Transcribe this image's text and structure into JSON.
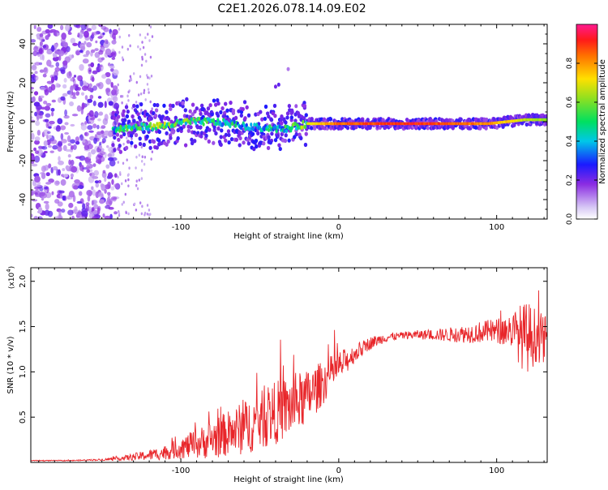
{
  "title": "C2E1.2026.078.14.09.E02",
  "chart_data": [
    {
      "type": "heatmap",
      "xlabel": "Height of straight line (km)",
      "ylabel": "Frequency (Hz)",
      "xlim": [
        -195,
        132
      ],
      "ylim": [
        -50,
        50
      ],
      "xticks": [
        "-100",
        "0",
        "100"
      ],
      "yticks": [
        "-40",
        "-20",
        "0",
        "20",
        "40"
      ],
      "xtick_values": [
        -100,
        0,
        100
      ],
      "ytick_values": [
        -40,
        -20,
        0,
        20,
        40
      ],
      "colorbar": {
        "label": "Normalized spectral amplitude",
        "ticks": [
          "0.0",
          "0.2",
          "0.4",
          "0.6",
          "0.8"
        ],
        "tick_values": [
          0.0,
          0.2,
          0.4,
          0.6,
          0.8
        ],
        "range": [
          0,
          1
        ]
      },
      "ridge": [
        {
          "x": -143,
          "freq": -4,
          "amp": 0.5
        },
        {
          "x": -130,
          "freq": -3,
          "amp": 0.55
        },
        {
          "x": -110,
          "freq": -2,
          "amp": 0.65
        },
        {
          "x": -95,
          "freq": 0,
          "amp": 0.6
        },
        {
          "x": -80,
          "freq": 0,
          "amp": 0.55
        },
        {
          "x": -68,
          "freq": -1,
          "amp": 0.5
        },
        {
          "x": -55,
          "freq": -3,
          "amp": 0.45
        },
        {
          "x": -45,
          "freq": -3,
          "amp": 0.5
        },
        {
          "x": -35,
          "freq": -4,
          "amp": 0.5
        },
        {
          "x": -20,
          "freq": -1,
          "amp": 0.7
        },
        {
          "x": 0,
          "freq": -1,
          "amp": 0.9
        },
        {
          "x": 50,
          "freq": -1,
          "amp": 0.95
        },
        {
          "x": 95,
          "freq": -1,
          "amp": 0.85
        },
        {
          "x": 118,
          "freq": 1,
          "amp": 0.7
        },
        {
          "x": 130,
          "freq": 1,
          "amp": 0.65
        }
      ]
    },
    {
      "type": "line",
      "xlabel": "Height of straight line (km)",
      "ylabel": "SNR (10 * v/v)",
      "y_exponent_label": "(x10",
      "y_exponent_power": "4",
      "y_exponent_close": ")",
      "xlim": [
        -195,
        132
      ],
      "ylim": [
        0,
        2.15
      ],
      "xticks": [
        "-100",
        "0",
        "100"
      ],
      "yticks": [
        "0.5",
        "1.0",
        "1.5",
        "2.0"
      ],
      "xtick_values": [
        -100,
        0,
        100
      ],
      "ytick_values": [
        0.5,
        1.0,
        1.5,
        2.0
      ],
      "series": [
        {
          "name": "SNR",
          "color": "#e8262a",
          "x": [
            -195,
            -170,
            -150,
            -140,
            -130,
            -120,
            -110,
            -100,
            -90,
            -80,
            -70,
            -60,
            -50,
            -40,
            -30,
            -20,
            -15,
            -10,
            -5,
            0,
            10,
            20,
            30,
            40,
            50,
            60,
            70,
            80,
            90,
            100,
            110,
            115,
            120,
            125,
            132
          ],
          "y": [
            0.02,
            0.02,
            0.03,
            0.04,
            0.06,
            0.08,
            0.11,
            0.16,
            0.2,
            0.26,
            0.32,
            0.38,
            0.46,
            0.55,
            0.62,
            0.72,
            0.8,
            0.88,
            0.98,
            1.05,
            1.2,
            1.32,
            1.38,
            1.4,
            1.41,
            1.41,
            1.41,
            1.42,
            1.44,
            1.45,
            1.46,
            1.4,
            1.38,
            1.4,
            1.35
          ],
          "noise": [
            0.005,
            0.005,
            0.01,
            0.02,
            0.04,
            0.06,
            0.08,
            0.12,
            0.16,
            0.22,
            0.25,
            0.3,
            0.32,
            0.35,
            0.35,
            0.3,
            0.28,
            0.24,
            0.2,
            0.18,
            0.1,
            0.07,
            0.05,
            0.04,
            0.05,
            0.06,
            0.08,
            0.1,
            0.12,
            0.14,
            0.2,
            0.35,
            0.4,
            0.3,
            0.25
          ]
        }
      ]
    }
  ]
}
